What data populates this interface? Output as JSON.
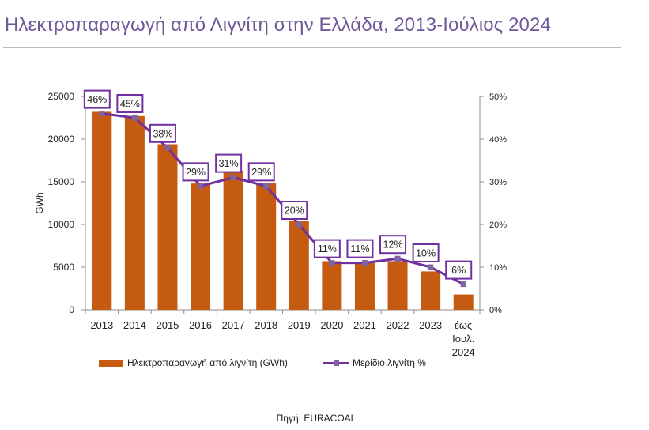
{
  "title": "Ηλεκτροπαραγωγή από Λιγνίτη στην Ελλάδα, 2013-Ιούλιος 2024",
  "source": "Πηγή: EURACOAL",
  "colors": {
    "title": "#6f5a99",
    "bar": "#c55a11",
    "line": "#7030a0",
    "marker": "#8064a2",
    "label_border": "#7030a0"
  },
  "chart_data": {
    "type": "bar",
    "categories": [
      "2013",
      "2014",
      "2015",
      "2016",
      "2017",
      "2018",
      "2019",
      "2020",
      "2021",
      "2022",
      "2023",
      "έως Ιουλ. 2024"
    ],
    "category_lines": [
      [
        "2013"
      ],
      [
        "2014"
      ],
      [
        "2015"
      ],
      [
        "2016"
      ],
      [
        "2017"
      ],
      [
        "2018"
      ],
      [
        "2019"
      ],
      [
        "2020"
      ],
      [
        "2021"
      ],
      [
        "2022"
      ],
      [
        "2023"
      ],
      [
        "έως",
        "Ιουλ.",
        "2024"
      ]
    ],
    "series": [
      {
        "name": "Ηλεκτροπαραγωγή από λιγνίτη (GWh)",
        "type": "bar",
        "axis": "left",
        "values": [
          23200,
          22700,
          19400,
          14800,
          16300,
          14900,
          10400,
          5700,
          5600,
          5700,
          4500,
          1800
        ]
      },
      {
        "name": "Μερίδιο λιγνίτη %",
        "type": "line",
        "axis": "right",
        "values": [
          46,
          45,
          38,
          29,
          31,
          29,
          20,
          11,
          11,
          12,
          10,
          6
        ]
      }
    ],
    "data_labels": [
      "46%",
      "45%",
      "38%",
      "29%",
      "31%",
      "29%",
      "20%",
      "11%",
      "11%",
      "12%",
      "10%",
      "6%"
    ],
    "ylabel": "GWh",
    "ylim": [
      0,
      25000
    ],
    "yticks": [
      0,
      5000,
      10000,
      15000,
      20000,
      25000
    ],
    "y2lim": [
      0,
      50
    ],
    "y2ticks": [
      "0%",
      "10%",
      "20%",
      "30%",
      "40%",
      "50%"
    ],
    "grid": false,
    "legend_position": "bottom"
  }
}
